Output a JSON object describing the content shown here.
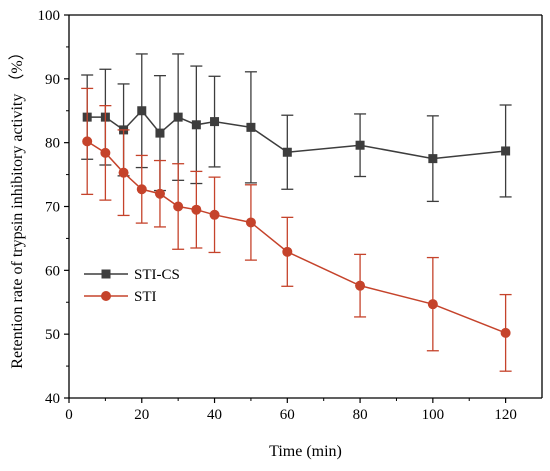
{
  "chart_data": {
    "type": "line",
    "xlabel": "Time (min)",
    "ylabel": "Retention rate of trypsin inhibitory activity （%）",
    "xlim": [
      0,
      130
    ],
    "ylim": [
      40,
      100
    ],
    "xticks": [
      0,
      20,
      40,
      60,
      80,
      100,
      120
    ],
    "yticks": [
      40,
      50,
      60,
      70,
      80,
      90,
      100
    ],
    "grid": false,
    "legend_position": "left-middle",
    "series": [
      {
        "name": "STI-CS",
        "color": "#3d3d3d",
        "marker": "square",
        "x": [
          5,
          10,
          15,
          20,
          25,
          30,
          35,
          40,
          50,
          60,
          80,
          100,
          120
        ],
        "y": [
          84.0,
          84.0,
          82.0,
          85.0,
          81.5,
          84.0,
          82.8,
          83.3,
          82.4,
          78.5,
          79.6,
          77.5,
          78.7
        ],
        "err": [
          6.6,
          7.5,
          7.2,
          8.9,
          9.0,
          9.9,
          9.2,
          7.1,
          8.7,
          5.8,
          4.9,
          6.7,
          7.2
        ]
      },
      {
        "name": "STI",
        "color": "#c5432b",
        "marker": "circle",
        "x": [
          5,
          10,
          15,
          20,
          25,
          30,
          35,
          40,
          50,
          60,
          80,
          100,
          120
        ],
        "y": [
          80.2,
          78.4,
          75.3,
          72.7,
          72.0,
          70.0,
          69.5,
          68.7,
          67.5,
          62.9,
          57.6,
          54.7,
          50.2
        ],
        "err": [
          8.3,
          7.4,
          6.7,
          5.3,
          5.2,
          6.7,
          6.0,
          5.9,
          5.9,
          5.4,
          4.9,
          7.3,
          6.0
        ]
      }
    ]
  }
}
